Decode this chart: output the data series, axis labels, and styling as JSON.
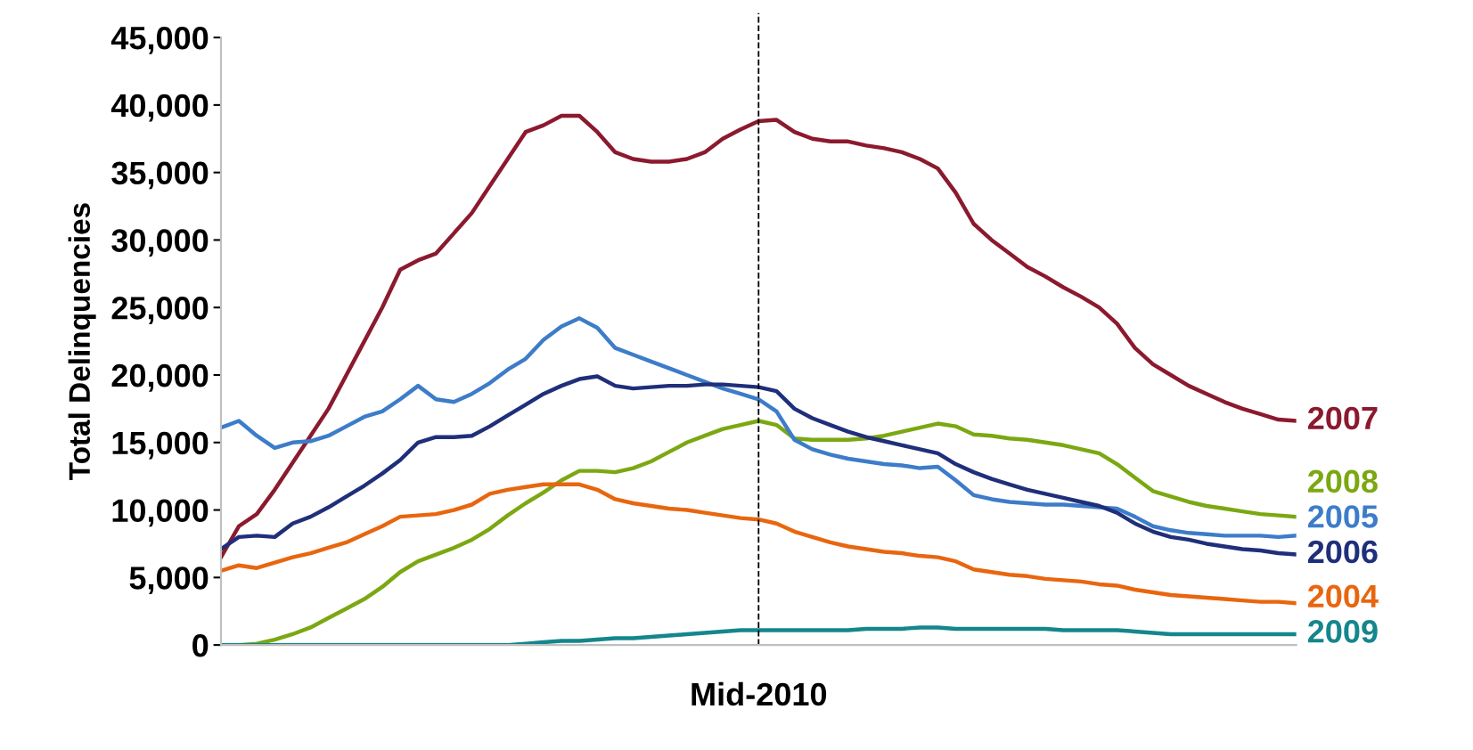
{
  "chart_data": {
    "type": "line",
    "ylabel": "Total Delinquencies",
    "categories": [
      null,
      null,
      null,
      null,
      null,
      null,
      null,
      null,
      null,
      null,
      null,
      null,
      null,
      null,
      null,
      null,
      null,
      null,
      null,
      null,
      null,
      null,
      null,
      null,
      null,
      null,
      null,
      null,
      null,
      null,
      null,
      null,
      null,
      null,
      null,
      null,
      null,
      null,
      null,
      null,
      null,
      null,
      null,
      null,
      null,
      null,
      null,
      null,
      null,
      null,
      null,
      null,
      null,
      null,
      null,
      null,
      null,
      null,
      null,
      null,
      null
    ],
    "ylim": [
      0,
      45000
    ],
    "yticks": [
      {
        "value": 0,
        "label": "0"
      },
      {
        "value": 5000,
        "label": "5,000"
      },
      {
        "value": 10000,
        "label": "10,000"
      },
      {
        "value": 15000,
        "label": "15,000"
      },
      {
        "value": 20000,
        "label": "20,000"
      },
      {
        "value": 25000,
        "label": "25,000"
      },
      {
        "value": 30000,
        "label": "30,000"
      },
      {
        "value": 35000,
        "label": "35,000"
      },
      {
        "value": 40000,
        "label": "40,000"
      },
      {
        "value": 45000,
        "label": "45,000"
      }
    ],
    "tick_labels": "y",
    "grid": false,
    "marker": "none",
    "line_style": "solid",
    "xlabel": "Mid-2010",
    "series": [
      {
        "name": "2007",
        "color": "#8b1a2e",
        "values": [
          6500,
          8800,
          9700,
          11500,
          13500,
          15500,
          17500,
          20000,
          22500,
          25000,
          27800,
          28500,
          29000,
          30500,
          32000,
          34000,
          36000,
          38000,
          38500,
          39200,
          39200,
          38000,
          36500,
          36000,
          35800,
          35800,
          36000,
          36500,
          37500,
          38200,
          38800,
          38900,
          38000,
          37500,
          37300,
          37300,
          37000,
          36800,
          36500,
          36000,
          35300,
          33500,
          31200,
          30000,
          29000,
          28000,
          27300,
          26500,
          25800,
          25000,
          23800,
          22000,
          20800,
          20000,
          19200,
          18600,
          18000,
          17500,
          17100,
          16700,
          16600
        ]
      },
      {
        "name": "2008",
        "color": "#7ba812",
        "values": [
          0,
          0,
          100,
          400,
          800,
          1300,
          2000,
          2700,
          3400,
          4300,
          5400,
          6200,
          6700,
          7200,
          7800,
          8600,
          9600,
          10500,
          11300,
          12200,
          12900,
          12900,
          12800,
          13100,
          13600,
          14300,
          15000,
          15500,
          16000,
          16300,
          16600,
          16300,
          15300,
          15200,
          15200,
          15200,
          15300,
          15500,
          15800,
          16100,
          16400,
          16200,
          15600,
          15500,
          15300,
          15200,
          15000,
          14800,
          14500,
          14200,
          13400,
          12400,
          11400,
          11000,
          10600,
          10300,
          10100,
          9900,
          9700,
          9600,
          9500
        ]
      },
      {
        "name": "2005",
        "color": "#3d7cc9",
        "values": [
          16100,
          16600,
          15500,
          14600,
          15000,
          15100,
          15500,
          16200,
          16900,
          17300,
          18200,
          19200,
          18200,
          18000,
          18600,
          19400,
          20400,
          21200,
          22600,
          23600,
          24200,
          23500,
          22000,
          21500,
          21000,
          20500,
          20000,
          19500,
          19000,
          18600,
          18200,
          17300,
          15200,
          14500,
          14100,
          13800,
          13600,
          13400,
          13300,
          13100,
          13200,
          12200,
          11100,
          10800,
          10600,
          10500,
          10400,
          10400,
          10300,
          10200,
          10100,
          9500,
          8800,
          8500,
          8300,
          8200,
          8100,
          8100,
          8100,
          8000,
          8100
        ]
      },
      {
        "name": "2006",
        "color": "#1f2f7a",
        "values": [
          7100,
          8000,
          8100,
          8000,
          9000,
          9500,
          10200,
          11000,
          11800,
          12700,
          13700,
          15000,
          15400,
          15400,
          15500,
          16200,
          17000,
          17800,
          18600,
          19200,
          19700,
          19900,
          19200,
          19000,
          19100,
          19200,
          19200,
          19300,
          19300,
          19200,
          19100,
          18800,
          17500,
          16800,
          16300,
          15800,
          15400,
          15100,
          14800,
          14500,
          14200,
          13400,
          12800,
          12300,
          11900,
          11500,
          11200,
          10900,
          10600,
          10300,
          9800,
          9000,
          8400,
          8000,
          7800,
          7500,
          7300,
          7100,
          7000,
          6800,
          6700
        ]
      },
      {
        "name": "2004",
        "color": "#e8660f",
        "values": [
          5500,
          5900,
          5700,
          6100,
          6500,
          6800,
          7200,
          7600,
          8200,
          8800,
          9500,
          9600,
          9700,
          10000,
          10400,
          11200,
          11500,
          11700,
          11900,
          11900,
          11900,
          11500,
          10800,
          10500,
          10300,
          10100,
          10000,
          9800,
          9600,
          9400,
          9300,
          9000,
          8400,
          8000,
          7600,
          7300,
          7100,
          6900,
          6800,
          6600,
          6500,
          6200,
          5600,
          5400,
          5200,
          5100,
          4900,
          4800,
          4700,
          4500,
          4400,
          4100,
          3900,
          3700,
          3600,
          3500,
          3400,
          3300,
          3200,
          3200,
          3100
        ]
      },
      {
        "name": "2009",
        "color": "#14868c",
        "values": [
          0,
          0,
          0,
          0,
          0,
          0,
          0,
          0,
          0,
          0,
          0,
          0,
          0,
          0,
          0,
          0,
          0,
          100,
          200,
          300,
          300,
          400,
          500,
          500,
          600,
          700,
          800,
          900,
          1000,
          1100,
          1100,
          1100,
          1100,
          1100,
          1100,
          1100,
          1200,
          1200,
          1200,
          1300,
          1300,
          1200,
          1200,
          1200,
          1200,
          1200,
          1200,
          1100,
          1100,
          1100,
          1100,
          1000,
          900,
          800,
          800,
          800,
          800,
          800,
          800,
          800,
          800
        ]
      }
    ]
  }
}
